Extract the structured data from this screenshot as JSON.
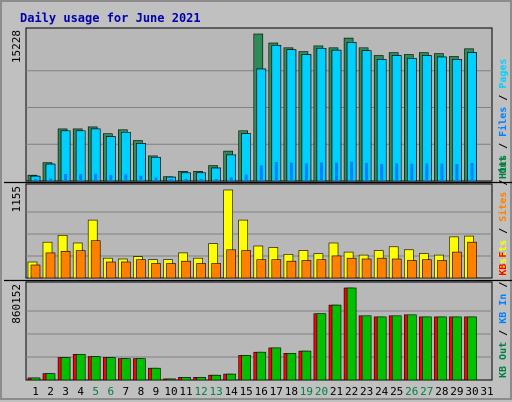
{
  "chart_data": {
    "type": "bar",
    "title": "Daily usage for June 2021",
    "days": [
      "1",
      "2",
      "3",
      "4",
      "5",
      "6",
      "7",
      "8",
      "9",
      "10",
      "11",
      "12",
      "13",
      "14",
      "15",
      "16",
      "17",
      "18",
      "19",
      "20",
      "21",
      "22",
      "23",
      "24",
      "25",
      "26",
      "27",
      "28",
      "29",
      "30",
      "31"
    ],
    "weekend_days": [
      "5",
      "6",
      "12",
      "13",
      "19",
      "20",
      "26",
      "27"
    ],
    "colors": {
      "background": "#c0c0c0",
      "plot_bg": "#b8b8b8",
      "title": "#0000b0",
      "weekday_tick": "#000000",
      "weekend_tick": "#008040",
      "separator": "#000000",
      "hits": "#008040",
      "files": "#0080ff",
      "pages": "#00d0ff",
      "visits": "#ffff00",
      "sites": "#ff8000",
      "kb_out": "#008040",
      "kb_in": "#0080ff",
      "kb_f": "#ff0000"
    },
    "panels": [
      {
        "name": "requests",
        "ymax_label": "15228",
        "ymax": 15228,
        "legend": [
          {
            "text": "Hits",
            "color": "#008040"
          },
          {
            "text": "/",
            "color": "#000000"
          },
          {
            "text": "Files",
            "color": "#0080ff"
          },
          {
            "text": "/",
            "color": "#000000"
          },
          {
            "text": "Pages",
            "color": "#00d0ff"
          }
        ],
        "series": [
          {
            "name": "Hits",
            "color": "#2e8b57",
            "values": [
              600,
              1900,
              5400,
              5400,
              5600,
              4900,
              5300,
              4200,
              2600,
              450,
              1000,
              1000,
              1600,
              3100,
              5200,
              15228,
              14300,
              13800,
              13400,
              14000,
              13800,
              14800,
              13800,
              13000,
              13300,
              13100,
              13300,
              13200,
              12900,
              13700,
              null
            ]
          },
          {
            "name": "Files",
            "color": "#0080ff",
            "values": [
              500,
              1750,
              5200,
              5200,
              5400,
              4600,
              5050,
              3900,
              2450,
              400,
              850,
              850,
              1350,
              2700,
              4900,
              11600,
              14050,
              13600,
              13100,
              13750,
              13550,
              14350,
              13500,
              12600,
              13000,
              12700,
              13000,
              12850,
              12600,
              13300,
              null
            ]
          },
          {
            "name": "Pages",
            "color": "#00d0ff",
            "values": [
              500,
              1750,
              5200,
              5200,
              5400,
              4600,
              5050,
              3900,
              2450,
              400,
              850,
              850,
              1350,
              2700,
              4900,
              11600,
              14050,
              13600,
              13100,
              13750,
              13550,
              14350,
              13500,
              12600,
              13000,
              12700,
              13000,
              12850,
              12600,
              13300,
              null
            ]
          }
        ]
      },
      {
        "name": "visitors",
        "ymax_label": "1155",
        "ymax": 1155,
        "legend": [
          {
            "text": "Visits",
            "color": "#ffff00"
          },
          {
            "text": "/",
            "color": "#000000"
          },
          {
            "text": "Sites",
            "color": "#ff8000"
          },
          {
            "text": "/",
            "color": "#000000"
          },
          {
            "text": "Out",
            "color": "#008040"
          }
        ],
        "series": [
          {
            "name": "Visits",
            "color": "#ffff00",
            "values": [
              210,
              470,
              560,
              460,
              760,
              260,
              250,
              280,
              240,
              240,
              330,
              260,
              450,
              1155,
              760,
              420,
              400,
              310,
              360,
              320,
              460,
              340,
              300,
              360,
              410,
              370,
              320,
              300,
              540,
              550,
              null
            ]
          },
          {
            "name": "Sites",
            "color": "#ff8000",
            "values": [
              170,
              330,
              350,
              360,
              490,
              210,
              210,
              240,
              190,
              190,
              220,
              190,
              190,
              370,
              360,
              240,
              240,
              220,
              230,
              240,
              290,
              260,
              250,
              260,
              250,
              230,
              240,
              230,
              340,
              470,
              null
            ]
          }
        ]
      },
      {
        "name": "traffic",
        "ymax_label": "860152",
        "ymax": 860152,
        "legend": [
          {
            "text": "KB Out",
            "color": "#008040"
          },
          {
            "text": "/",
            "color": "#000000"
          },
          {
            "text": "KB In",
            "color": "#0080ff"
          },
          {
            "text": "/",
            "color": "#000000"
          },
          {
            "text": "KB F",
            "color": "#ff0000"
          }
        ],
        "series": [
          {
            "name": "KB F",
            "color": "#ff0000",
            "values": [
              20000,
              60000,
              210000,
              240000,
              220000,
              210000,
              200000,
              200000,
              110000,
              10000,
              25000,
              25000,
              45000,
              55000,
              230000,
              260000,
              300000,
              250000,
              270000,
              620000,
              700000,
              860152,
              600000,
              590000,
              600000,
              610000,
              590000,
              590000,
              590000,
              590000,
              null
            ]
          },
          {
            "name": "KB Out",
            "color": "#00c000",
            "values": [
              20000,
              60000,
              210000,
              240000,
              220000,
              210000,
              200000,
              200000,
              110000,
              10000,
              25000,
              25000,
              45000,
              55000,
              230000,
              260000,
              300000,
              250000,
              270000,
              620000,
              700000,
              860152,
              600000,
              590000,
              600000,
              610000,
              590000,
              590000,
              590000,
              590000,
              null
            ]
          }
        ]
      }
    ]
  }
}
